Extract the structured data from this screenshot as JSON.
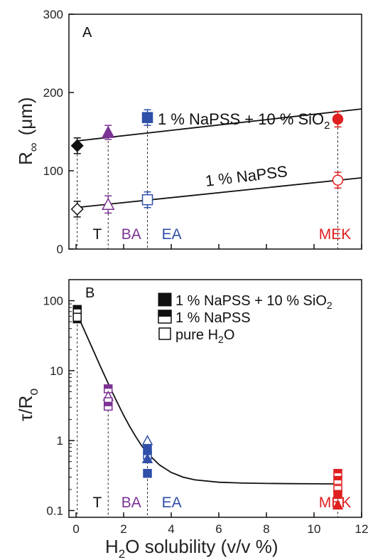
{
  "colors": {
    "T": "#111111",
    "BA": "#7b3294",
    "EA": "#2f4fa8",
    "MEK": "#e02020"
  },
  "chart_data": [
    {
      "panel_label": "A",
      "type": "scatter",
      "xlim": [
        -0.3,
        12
      ],
      "ylim": [
        0,
        300
      ],
      "ylabel_main": "R",
      "ylabel_sub": "∞",
      "ylabel_unit": "(μm)",
      "yticks": [
        0,
        100,
        200,
        300
      ],
      "series": [
        {
          "points": [
            {
              "solvent": "T",
              "x": 0.05,
              "y": 132,
              "err": 10,
              "marker": "diamond"
            },
            {
              "solvent": "BA",
              "x": 1.35,
              "y": 149,
              "err": 9,
              "marker": "triangle"
            },
            {
              "solvent": "EA",
              "x": 3.0,
              "y": 168,
              "err": 10,
              "marker": "square"
            },
            {
              "solvent": "MEK",
              "x": 11.0,
              "y": 166,
              "err": 10,
              "marker": "circle"
            }
          ],
          "fit": {
            "x": [
              0,
              12
            ],
            "y": [
              138,
              179
            ]
          }
        },
        {
          "points": [
            {
              "solvent": "T",
              "x": 0.05,
              "y": 51,
              "err": 10,
              "marker": "diamond"
            },
            {
              "solvent": "BA",
              "x": 1.35,
              "y": 57,
              "err": 11,
              "marker": "triangle"
            },
            {
              "solvent": "EA",
              "x": 3.0,
              "y": 63,
              "err": 10,
              "marker": "square"
            },
            {
              "solvent": "MEK",
              "x": 11.0,
              "y": 88,
              "err": 10,
              "marker": "circle"
            }
          ],
          "fit": {
            "x": [
              0,
              12
            ],
            "y": [
              53,
              91
            ]
          }
        }
      ],
      "annotations": {
        "upper_text": "1 % NaPSS + 10 % SiO",
        "upper_sub": "2",
        "lower_text": "1 % NaPSS"
      },
      "solvent_labels": [
        {
          "text": "T",
          "color_key": "T",
          "x": 0.7
        },
        {
          "text": "BA",
          "color_key": "BA",
          "x": 1.9
        },
        {
          "text": "EA",
          "color_key": "EA",
          "x": 3.6
        },
        {
          "text": "MEK",
          "color_key": "MEK",
          "x": 10.2
        }
      ]
    },
    {
      "panel_label": "B",
      "type": "scatter",
      "yscale": "log",
      "xlim": [
        -0.3,
        12
      ],
      "ylim": [
        0.08,
        200
      ],
      "ylabel_main": "τ/R",
      "ylabel_sub": "o",
      "yticks": [
        0.1,
        1,
        10,
        100
      ],
      "ytick_labels": [
        "0.1",
        "1",
        "10",
        "100"
      ],
      "xticks": [
        0,
        2,
        4,
        6,
        8,
        10,
        12
      ],
      "xlabel_pre": "H",
      "xlabel_sub": "2",
      "xlabel_post": "O solubility (v/v %)",
      "legend": [
        {
          "label": "1 % NaPSS + 10 % SiO",
          "sub": "2",
          "style": "filled"
        },
        {
          "label": "1 % NaPSS",
          "sub": "",
          "style": "half"
        },
        {
          "label": "pure H",
          "sub": "2",
          "label_post": "O",
          "style": "open"
        }
      ],
      "points": [
        {
          "solvent": "T",
          "x": 0.05,
          "y": 70,
          "marker": "square",
          "style": "filled"
        },
        {
          "solvent": "T",
          "x": 0.05,
          "y": 55,
          "marker": "square",
          "style": "filled"
        },
        {
          "solvent": "T",
          "x": 0.05,
          "y": 62,
          "marker": "square",
          "style": "half"
        },
        {
          "solvent": "T",
          "x": 0.05,
          "y": 75,
          "marker": "square",
          "style": "half"
        },
        {
          "solvent": "T",
          "x": 0.05,
          "y": 58,
          "marker": "square",
          "style": "open"
        },
        {
          "solvent": "BA",
          "x": 1.35,
          "y": 5.5,
          "marker": "square",
          "style": "half"
        },
        {
          "solvent": "BA",
          "x": 1.35,
          "y": 4.3,
          "marker": "triangle",
          "style": "open"
        },
        {
          "solvent": "BA",
          "x": 1.35,
          "y": 3.6,
          "marker": "square",
          "style": "open"
        },
        {
          "solvent": "BA",
          "x": 1.35,
          "y": 3.1,
          "marker": "square",
          "style": "half"
        },
        {
          "solvent": "EA",
          "x": 3.0,
          "y": 1.0,
          "marker": "triangle",
          "style": "open"
        },
        {
          "solvent": "EA",
          "x": 3.0,
          "y": 0.75,
          "marker": "square",
          "style": "filled"
        },
        {
          "solvent": "EA",
          "x": 3.0,
          "y": 0.62,
          "marker": "square",
          "style": "half"
        },
        {
          "solvent": "EA",
          "x": 3.0,
          "y": 0.55,
          "marker": "triangle",
          "style": "filled"
        },
        {
          "solvent": "EA",
          "x": 3.0,
          "y": 0.34,
          "marker": "square",
          "style": "filled"
        },
        {
          "solvent": "MEK",
          "x": 11.0,
          "y": 0.34,
          "marker": "square",
          "style": "half"
        },
        {
          "solvent": "MEK",
          "x": 11.0,
          "y": 0.27,
          "marker": "square",
          "style": "half"
        },
        {
          "solvent": "MEK",
          "x": 11.0,
          "y": 0.2,
          "marker": "square",
          "style": "open"
        },
        {
          "solvent": "MEK",
          "x": 11.0,
          "y": 0.17,
          "marker": "square",
          "style": "filled"
        },
        {
          "solvent": "MEK",
          "x": 11.0,
          "y": 0.12,
          "marker": "triangle",
          "style": "filled"
        }
      ],
      "fit_curve": {
        "x": [
          0,
          0.25,
          0.5,
          0.75,
          1,
          1.25,
          1.5,
          1.75,
          2,
          2.25,
          2.5,
          2.75,
          3,
          3.5,
          4,
          4.5,
          5,
          6,
          7,
          8,
          9,
          10,
          11
        ],
        "y": [
          70.2,
          45.0,
          28.9,
          18.6,
          12.0,
          7.8,
          5.1,
          3.4,
          2.3,
          1.6,
          1.15,
          0.85,
          0.66,
          0.45,
          0.35,
          0.3,
          0.274,
          0.254,
          0.247,
          0.244,
          0.242,
          0.241,
          0.24
        ]
      },
      "solvent_labels": [
        {
          "text": "T",
          "color_key": "T",
          "x": 0.7
        },
        {
          "text": "BA",
          "color_key": "BA",
          "x": 1.9
        },
        {
          "text": "EA",
          "color_key": "EA",
          "x": 3.6
        },
        {
          "text": "MEK",
          "color_key": "MEK",
          "x": 10.2
        }
      ]
    }
  ]
}
